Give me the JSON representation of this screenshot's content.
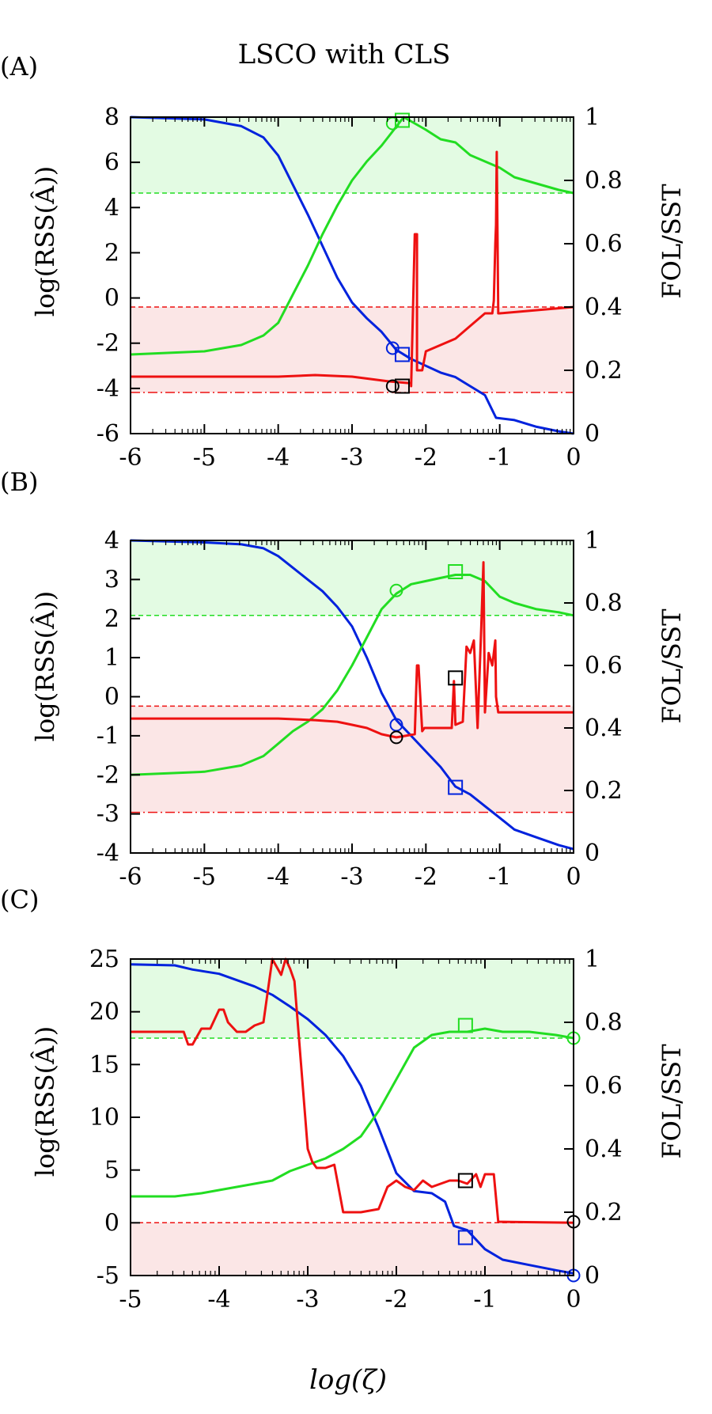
{
  "colors": {
    "rss": "#0022dd",
    "fol": "#22dd22",
    "sst": "#ee1111",
    "marker_black": "#000000",
    "green_band": "#e3fbe3",
    "red_band": "#fbe6e6"
  },
  "figure": {
    "title": "LSCO with CLS",
    "xlabel": "log(ζ)"
  },
  "chart_data": [
    {
      "type": "line",
      "panel_label": "(A)",
      "ylabel_left": "log(RSS(Â))",
      "ylabel_right": "FOL/SST",
      "xlim": [
        -6,
        0
      ],
      "ylim_left": [
        -6,
        8
      ],
      "ylim_right": [
        0,
        1
      ],
      "xticks": [
        "-6",
        "-5",
        "-4",
        "-3",
        "-2",
        "-1",
        "0"
      ],
      "yticks_left": [
        "-6",
        "-4",
        "-2",
        "0",
        "2",
        "4",
        "6",
        "8"
      ],
      "yticks_right": [
        "0",
        "0.2",
        "0.4",
        "0.6",
        "0.8",
        "1"
      ],
      "bands": {
        "green_from": 0.76,
        "red_from": 0.13,
        "red_to": 0.4
      },
      "ref_lines": [
        {
          "y": 0.76,
          "style": "dash",
          "color": "fol"
        },
        {
          "y": 0.4,
          "style": "dash",
          "color": "sst"
        },
        {
          "y": 0.13,
          "style": "dashdot",
          "color": "sst"
        }
      ],
      "series": [
        {
          "name": "log RSS",
          "color": "rss",
          "axis": "left",
          "x": [
            -6,
            -5.0,
            -4.5,
            -4.2,
            -4.0,
            -3.8,
            -3.6,
            -3.4,
            -3.2,
            -3.0,
            -2.8,
            -2.6,
            -2.4,
            -2.2,
            -2.0,
            -1.8,
            -1.6,
            -1.4,
            -1.2,
            -1.05,
            -0.8,
            -0.5,
            -0.2,
            0
          ],
          "y": [
            8,
            7.9,
            7.6,
            7.1,
            6.3,
            5.0,
            3.7,
            2.3,
            0.9,
            -0.2,
            -0.9,
            -1.5,
            -2.3,
            -2.7,
            -3.0,
            -3.3,
            -3.5,
            -3.9,
            -4.3,
            -5.3,
            -5.4,
            -5.7,
            -5.9,
            -6.0
          ]
        },
        {
          "name": "FOL",
          "color": "fol",
          "axis": "right",
          "x": [
            -6,
            -5.0,
            -4.5,
            -4.2,
            -4.0,
            -3.8,
            -3.6,
            -3.4,
            -3.2,
            -3.0,
            -2.8,
            -2.6,
            -2.4,
            -2.3,
            -2.0,
            -1.8,
            -1.6,
            -1.4,
            -1.2,
            -1.0,
            -0.8,
            -0.5,
            -0.2,
            0
          ],
          "y": [
            0.25,
            0.26,
            0.28,
            0.31,
            0.35,
            0.44,
            0.53,
            0.63,
            0.72,
            0.8,
            0.86,
            0.91,
            0.97,
            1.0,
            0.96,
            0.93,
            0.92,
            0.88,
            0.86,
            0.84,
            0.81,
            0.79,
            0.77,
            0.76
          ]
        },
        {
          "name": "SST",
          "color": "sst",
          "axis": "right",
          "x": [
            -6,
            -4.0,
            -3.5,
            -3.0,
            -2.5,
            -2.25,
            -2.2,
            -2.2,
            -2.15,
            -2.12,
            -2.12,
            -2.05,
            -2.0,
            -1.8,
            -1.6,
            -1.4,
            -1.2,
            -1.1,
            -1.08,
            -1.06,
            -1.05,
            -1.04,
            -1.02,
            -1.0,
            -0.5,
            0
          ],
          "y": [
            0.18,
            0.18,
            0.185,
            0.18,
            0.165,
            0.16,
            0.16,
            0.15,
            0.63,
            0.63,
            0.2,
            0.2,
            0.26,
            0.28,
            0.3,
            0.34,
            0.38,
            0.38,
            0.42,
            0.6,
            0.66,
            0.89,
            0.38,
            0.38,
            0.39,
            0.4
          ]
        }
      ],
      "markers": [
        {
          "shape": "circle",
          "color": "rss",
          "x": -2.45,
          "y": 0.27
        },
        {
          "shape": "square",
          "color": "rss",
          "x": -2.32,
          "y": 0.25
        },
        {
          "shape": "circle",
          "color": "fol",
          "x": -2.45,
          "y": 0.98
        },
        {
          "shape": "square",
          "color": "fol",
          "x": -2.32,
          "y": 0.99
        },
        {
          "shape": "circle",
          "color": "marker_black",
          "x": -2.45,
          "y": 0.15
        },
        {
          "shape": "square",
          "color": "marker_black",
          "x": -2.32,
          "y": 0.15
        }
      ]
    },
    {
      "type": "line",
      "panel_label": "(B)",
      "ylabel_left": "log(RSS(Â))",
      "ylabel_right": "FOL/SST",
      "xlim": [
        -6,
        0
      ],
      "ylim_left": [
        -4,
        4
      ],
      "ylim_right": [
        0,
        1
      ],
      "xticks": [
        "-6",
        "-5",
        "-4",
        "-3",
        "-2",
        "-1",
        "0"
      ],
      "yticks_left": [
        "-4",
        "-3",
        "-2",
        "-1",
        "0",
        "1",
        "2",
        "3",
        "4"
      ],
      "yticks_right": [
        "0",
        "0.2",
        "0.4",
        "0.6",
        "0.8",
        "1"
      ],
      "bands": {
        "green_from": 0.76,
        "red_from": 0.13,
        "red_to": 0.47
      },
      "ref_lines": [
        {
          "y": 0.76,
          "style": "dash",
          "color": "fol"
        },
        {
          "y": 0.47,
          "style": "dash",
          "color": "sst"
        },
        {
          "y": 0.13,
          "style": "dashdot",
          "color": "sst"
        }
      ],
      "series": [
        {
          "name": "log RSS",
          "color": "rss",
          "axis": "left",
          "x": [
            -6,
            -5.0,
            -4.5,
            -4.2,
            -4.0,
            -3.8,
            -3.6,
            -3.4,
            -3.2,
            -3.0,
            -2.8,
            -2.6,
            -2.4,
            -2.2,
            -2.0,
            -1.8,
            -1.6,
            -1.4,
            -1.2,
            -1.0,
            -0.8,
            -0.5,
            -0.2,
            0
          ],
          "y": [
            4,
            3.95,
            3.9,
            3.8,
            3.6,
            3.3,
            3.0,
            2.7,
            2.3,
            1.8,
            1.0,
            0.1,
            -0.6,
            -1.0,
            -1.4,
            -1.8,
            -2.3,
            -2.5,
            -2.8,
            -3.1,
            -3.4,
            -3.6,
            -3.8,
            -3.9
          ]
        },
        {
          "name": "FOL",
          "color": "fol",
          "axis": "right",
          "x": [
            -6,
            -5.0,
            -4.5,
            -4.2,
            -4.0,
            -3.8,
            -3.6,
            -3.4,
            -3.2,
            -3.0,
            -2.8,
            -2.6,
            -2.4,
            -2.2,
            -2.0,
            -1.8,
            -1.6,
            -1.4,
            -1.2,
            -1.0,
            -0.8,
            -0.5,
            -0.2,
            0
          ],
          "y": [
            0.25,
            0.26,
            0.28,
            0.31,
            0.35,
            0.39,
            0.42,
            0.46,
            0.52,
            0.6,
            0.69,
            0.78,
            0.83,
            0.86,
            0.87,
            0.88,
            0.89,
            0.89,
            0.87,
            0.82,
            0.8,
            0.78,
            0.77,
            0.76
          ]
        },
        {
          "name": "SST",
          "color": "sst",
          "axis": "right",
          "x": [
            -6,
            -4.0,
            -3.5,
            -3.2,
            -3.0,
            -2.8,
            -2.6,
            -2.4,
            -2.15,
            -2.12,
            -2.1,
            -2.05,
            -2.02,
            -2.0,
            -1.8,
            -1.65,
            -1.62,
            -1.6,
            -1.5,
            -1.45,
            -1.4,
            -1.35,
            -1.3,
            -1.25,
            -1.22,
            -1.2,
            -1.15,
            -1.1,
            -1.06,
            -1.05,
            -1.02,
            -1.0,
            -0.5,
            0
          ],
          "y": [
            0.43,
            0.43,
            0.425,
            0.42,
            0.41,
            0.4,
            0.38,
            0.37,
            0.38,
            0.6,
            0.6,
            0.39,
            0.4,
            0.4,
            0.4,
            0.4,
            0.55,
            0.41,
            0.42,
            0.66,
            0.64,
            0.68,
            0.4,
            0.72,
            0.93,
            0.45,
            0.64,
            0.6,
            0.68,
            0.5,
            0.45,
            0.45,
            0.45,
            0.45
          ]
        }
      ],
      "markers": [
        {
          "shape": "circle",
          "color": "rss",
          "x": -2.4,
          "y": 0.41
        },
        {
          "shape": "square",
          "color": "rss",
          "x": -1.6,
          "y": 0.21
        },
        {
          "shape": "circle",
          "color": "fol",
          "x": -2.4,
          "y": 0.84
        },
        {
          "shape": "square",
          "color": "fol",
          "x": -1.6,
          "y": 0.9
        },
        {
          "shape": "circle",
          "color": "marker_black",
          "x": -2.4,
          "y": 0.37
        },
        {
          "shape": "square",
          "color": "marker_black",
          "x": -1.6,
          "y": 0.56
        }
      ]
    },
    {
      "type": "line",
      "panel_label": "(C)",
      "ylabel_left": "log(RSS(Â))",
      "ylabel_right": "FOL/SST",
      "xlim": [
        -5,
        0
      ],
      "ylim_left": [
        -5,
        25
      ],
      "ylim_right": [
        0,
        1
      ],
      "xticks": [
        "-5",
        "-4",
        "-3",
        "-2",
        "-1",
        "0"
      ],
      "yticks_left": [
        "-5",
        "0",
        "5",
        "10",
        "15",
        "20",
        "25"
      ],
      "yticks_right": [
        "0",
        "0.2",
        "0.4",
        "0.6",
        "0.8",
        "1"
      ],
      "bands": {
        "green_from": 0.75,
        "red_from": 0.0,
        "red_to": 0.167
      },
      "ref_lines": [
        {
          "y": 0.75,
          "style": "dash",
          "color": "fol"
        },
        {
          "y": 0.167,
          "style": "dash",
          "color": "sst"
        }
      ],
      "series": [
        {
          "name": "log RSS",
          "color": "rss",
          "axis": "left",
          "x": [
            -5,
            -4.5,
            -4.3,
            -4.0,
            -3.8,
            -3.6,
            -3.4,
            -3.2,
            -3.0,
            -2.8,
            -2.6,
            -2.4,
            -2.2,
            -2.0,
            -1.8,
            -1.6,
            -1.45,
            -1.35,
            -1.2,
            -1.0,
            -0.8,
            -0.5,
            -0.2,
            0
          ],
          "y": [
            24.5,
            24.4,
            24.0,
            23.6,
            23.0,
            22.4,
            21.6,
            20.5,
            19.3,
            17.8,
            15.8,
            13.0,
            9.0,
            4.7,
            3.0,
            2.8,
            2.0,
            -0.3,
            -0.7,
            -2.5,
            -3.5,
            -4.0,
            -4.5,
            -4.8
          ]
        },
        {
          "name": "FOL",
          "color": "fol",
          "axis": "right",
          "x": [
            -5,
            -4.5,
            -4.2,
            -4.0,
            -3.8,
            -3.6,
            -3.4,
            -3.2,
            -3.0,
            -2.8,
            -2.6,
            -2.4,
            -2.2,
            -2.0,
            -1.8,
            -1.6,
            -1.4,
            -1.2,
            -1.0,
            -0.8,
            -0.5,
            -0.2,
            0
          ],
          "y": [
            0.25,
            0.25,
            0.26,
            0.27,
            0.28,
            0.29,
            0.3,
            0.33,
            0.35,
            0.37,
            0.4,
            0.44,
            0.52,
            0.62,
            0.72,
            0.76,
            0.77,
            0.77,
            0.78,
            0.77,
            0.77,
            0.76,
            0.75
          ]
        },
        {
          "name": "SST",
          "color": "sst",
          "axis": "right",
          "x": [
            -5,
            -4.4,
            -4.35,
            -4.3,
            -4.2,
            -4.1,
            -4.0,
            -3.95,
            -3.9,
            -3.8,
            -3.7,
            -3.6,
            -3.5,
            -3.4,
            -3.3,
            -3.25,
            -3.2,
            -3.15,
            -3.0,
            -2.95,
            -2.9,
            -2.8,
            -2.7,
            -2.6,
            -2.5,
            -2.4,
            -2.2,
            -2.1,
            -2.0,
            -1.9,
            -1.8,
            -1.7,
            -1.6,
            -1.5,
            -1.4,
            -1.3,
            -1.2,
            -1.1,
            -1.05,
            -1.0,
            -0.9,
            -0.85,
            0
          ],
          "y": [
            0.77,
            0.77,
            0.73,
            0.73,
            0.78,
            0.78,
            0.84,
            0.84,
            0.8,
            0.77,
            0.77,
            0.79,
            0.8,
            1.0,
            0.95,
            1.0,
            0.97,
            0.93,
            0.4,
            0.36,
            0.34,
            0.34,
            0.35,
            0.2,
            0.2,
            0.2,
            0.21,
            0.28,
            0.3,
            0.28,
            0.27,
            0.3,
            0.28,
            0.29,
            0.3,
            0.3,
            0.29,
            0.32,
            0.28,
            0.32,
            0.32,
            0.17,
            0.167
          ]
        }
      ],
      "markers": [
        {
          "shape": "circle",
          "color": "rss",
          "x": 0.0,
          "y": 0.0
        },
        {
          "shape": "square",
          "color": "rss",
          "x": -1.22,
          "y": 0.12
        },
        {
          "shape": "circle",
          "color": "fol",
          "x": 0.0,
          "y": 0.75
        },
        {
          "shape": "square",
          "color": "fol",
          "x": -1.22,
          "y": 0.79
        },
        {
          "shape": "circle",
          "color": "marker_black",
          "x": 0.0,
          "y": 0.17
        },
        {
          "shape": "square",
          "color": "marker_black",
          "x": -1.22,
          "y": 0.3
        }
      ]
    }
  ]
}
